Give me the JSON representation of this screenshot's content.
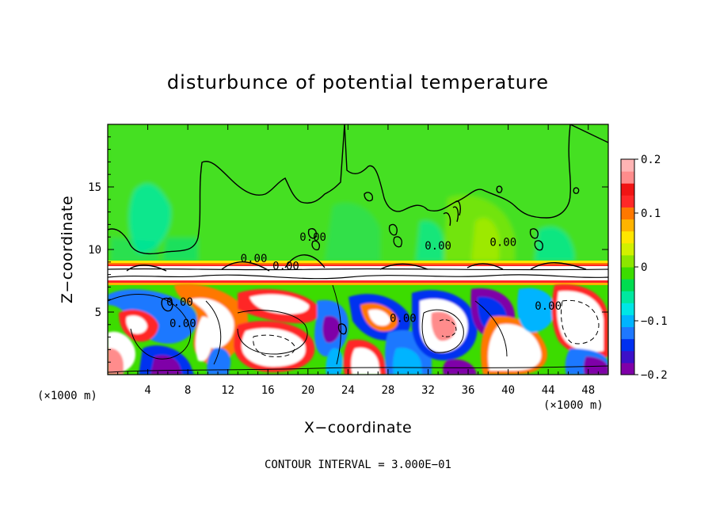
{
  "chart_data": {
    "type": "heatmap",
    "title": "disturbunce of potential temperature",
    "xlabel": "X−coordinate",
    "ylabel": "Z−coordinate",
    "x_unit": "(×1000 m)",
    "y_unit": "(×1000 m)",
    "xlim": [
      0,
      50
    ],
    "ylim": [
      0,
      20
    ],
    "x_ticks": [
      4,
      8,
      12,
      16,
      20,
      24,
      28,
      32,
      36,
      40,
      44,
      48
    ],
    "y_ticks": [
      5,
      10,
      15
    ],
    "colorbar": {
      "range": [
        -0.2,
        0.2
      ],
      "ticks": [
        {
          "value": 0.2,
          "label": "0.2"
        },
        {
          "value": 0.1,
          "label": "0.1"
        },
        {
          "value": 0,
          "label": "0"
        },
        {
          "value": -0.1,
          "label": "−0.1"
        },
        {
          "value": -0.2,
          "label": "−0.2"
        }
      ],
      "colors": [
        "#7f00a8",
        "#3c10c8",
        "#0030f0",
        "#1e78ff",
        "#00b4ff",
        "#00e6e6",
        "#00e8a0",
        "#00dc50",
        "#3cdc00",
        "#8ce600",
        "#d2f000",
        "#ffe600",
        "#ffb400",
        "#ff7800",
        "#ff2828",
        "#f01414",
        "#ff8c8c",
        "#ffb4b4"
      ]
    },
    "contour_interval_text": "CONTOUR INTERVAL = 3.000E−01",
    "contour_labels": [
      {
        "text": "0.00",
        "x": 14.6,
        "z": 9.0
      },
      {
        "text": "0.00",
        "x": 17.8,
        "z": 8.4
      },
      {
        "text": "0.00",
        "x": 7.2,
        "z": 5.5
      },
      {
        "text": "0.00",
        "x": 20.5,
        "z": 10.7
      },
      {
        "text": "0.00",
        "x": 33.0,
        "z": 10.0
      },
      {
        "text": "0.00",
        "x": 39.5,
        "z": 10.3
      },
      {
        "text": "0.00",
        "x": 7.5,
        "z": 3.8
      },
      {
        "text": "0.00",
        "x": 29.5,
        "z": 4.2
      },
      {
        "text": "0.00",
        "x": 44.0,
        "z": 5.2
      }
    ],
    "grid": false
  }
}
